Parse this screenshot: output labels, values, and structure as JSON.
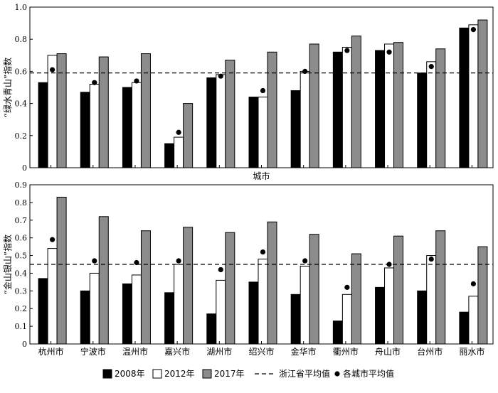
{
  "chart_data": [
    {
      "type": "bar",
      "ylabel": "“绿水青山”指数",
      "xlabel": "城市",
      "ylim": [
        0,
        1.0
      ],
      "yticks": [
        "0",
        "0.2",
        "0.4",
        "0.6",
        "0.8",
        "1.0"
      ],
      "categories": [
        "杭州市",
        "宁波市",
        "温州市",
        "嘉兴市",
        "湖州市",
        "绍兴市",
        "金华市",
        "衢州市",
        "舟山市",
        "台州市",
        "丽水市"
      ],
      "series": [
        {
          "name": "2008年",
          "values": [
            0.53,
            0.47,
            0.5,
            0.15,
            0.56,
            0.44,
            0.48,
            0.72,
            0.73,
            0.59,
            0.87
          ]
        },
        {
          "name": "2012年",
          "values": [
            0.7,
            0.52,
            0.53,
            0.19,
            0.58,
            0.44,
            0.6,
            0.75,
            0.77,
            0.66,
            0.89
          ]
        },
        {
          "name": "2017年",
          "values": [
            0.71,
            0.69,
            0.71,
            0.4,
            0.67,
            0.72,
            0.77,
            0.82,
            0.78,
            0.74,
            0.92
          ]
        }
      ],
      "city_average": [
        0.61,
        0.53,
        0.54,
        0.22,
        0.57,
        0.48,
        0.6,
        0.73,
        0.72,
        0.63,
        0.86
      ],
      "province_average": 0.59,
      "grid": false
    },
    {
      "type": "bar",
      "ylabel": "“金山银山”指数",
      "xlabel": "",
      "ylim": [
        0,
        0.9
      ],
      "yticks": [
        "0",
        "0.1",
        "0.2",
        "0.3",
        "0.4",
        "0.5",
        "0.6",
        "0.7",
        "0.8",
        "0.9"
      ],
      "categories": [
        "杭州市",
        "宁波市",
        "温州市",
        "嘉兴市",
        "湖州市",
        "绍兴市",
        "金华市",
        "衢州市",
        "舟山市",
        "台州市",
        "丽水市"
      ],
      "series": [
        {
          "name": "2008年",
          "values": [
            0.37,
            0.3,
            0.34,
            0.29,
            0.17,
            0.35,
            0.28,
            0.13,
            0.32,
            0.3,
            0.18
          ]
        },
        {
          "name": "2012年",
          "values": [
            0.54,
            0.4,
            0.39,
            0.45,
            0.36,
            0.48,
            0.44,
            0.28,
            0.43,
            0.5,
            0.27
          ]
        },
        {
          "name": "2017年",
          "values": [
            0.83,
            0.72,
            0.64,
            0.66,
            0.63,
            0.69,
            0.62,
            0.51,
            0.61,
            0.64,
            0.55
          ]
        }
      ],
      "city_average": [
        0.59,
        0.47,
        0.46,
        0.47,
        0.42,
        0.52,
        0.47,
        0.32,
        0.45,
        0.48,
        0.34
      ],
      "province_average": 0.45,
      "grid": false
    }
  ],
  "legend": {
    "placement": "bottom",
    "items": [
      {
        "label": "2008年",
        "kind": "black-bar"
      },
      {
        "label": "2012年",
        "kind": "white-bar"
      },
      {
        "label": "2017年",
        "kind": "gray-bar"
      },
      {
        "label": "浙江省平均值",
        "kind": "dashed-line"
      },
      {
        "label": "各城市平均值",
        "kind": "dot"
      }
    ]
  },
  "colors": {
    "2008": "#000000",
    "2012": "#ffffff",
    "2017": "#8c8c8c",
    "outline": "#000000"
  }
}
